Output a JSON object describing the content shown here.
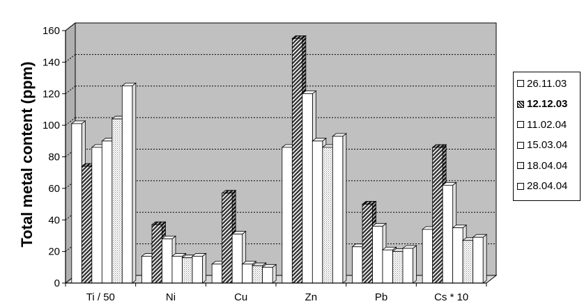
{
  "chart_data": {
    "type": "bar",
    "title": "",
    "xlabel": "",
    "ylabel": "Total metal content (ppm)",
    "ylim": [
      0,
      160
    ],
    "yticks": [
      "0",
      "20",
      "40",
      "60",
      "80",
      "100",
      "120",
      "140",
      "160"
    ],
    "categories": [
      "Ti / 50",
      "Ni",
      "Cu",
      "Zn",
      "Pb",
      "Cs * 10"
    ],
    "grid": true,
    "legend_position": "right",
    "series": [
      {
        "name": "26.11.03",
        "values": [
          101,
          17,
          12,
          86,
          23,
          34
        ],
        "fill": "#ffffff",
        "pattern": "none",
        "bold": false
      },
      {
        "name": "12.12.03",
        "values": [
          74,
          37,
          57,
          155,
          50,
          86
        ],
        "fill": "#555555",
        "pattern": "diag",
        "bold": true
      },
      {
        "name": "11.02.04",
        "values": [
          86,
          28,
          31,
          120,
          36,
          62
        ],
        "fill": "#ffffff",
        "pattern": "none",
        "bold": false
      },
      {
        "name": "15.03.04",
        "values": [
          90,
          17,
          12,
          90,
          21,
          35
        ],
        "fill": "#ffffff",
        "pattern": "none",
        "bold": false
      },
      {
        "name": "18.04.04",
        "values": [
          104,
          16,
          11,
          86,
          20,
          27
        ],
        "fill": "#f2f2f2",
        "pattern": "dots",
        "bold": false
      },
      {
        "name": "28.04.04",
        "values": [
          125,
          17,
          10,
          93,
          22,
          29
        ],
        "fill": "#ffffff",
        "pattern": "none",
        "bold": false
      }
    ]
  },
  "colors": {
    "plot_background": "#c0c0c0",
    "bar_outline": "#000000",
    "gridline": "#000000"
  }
}
